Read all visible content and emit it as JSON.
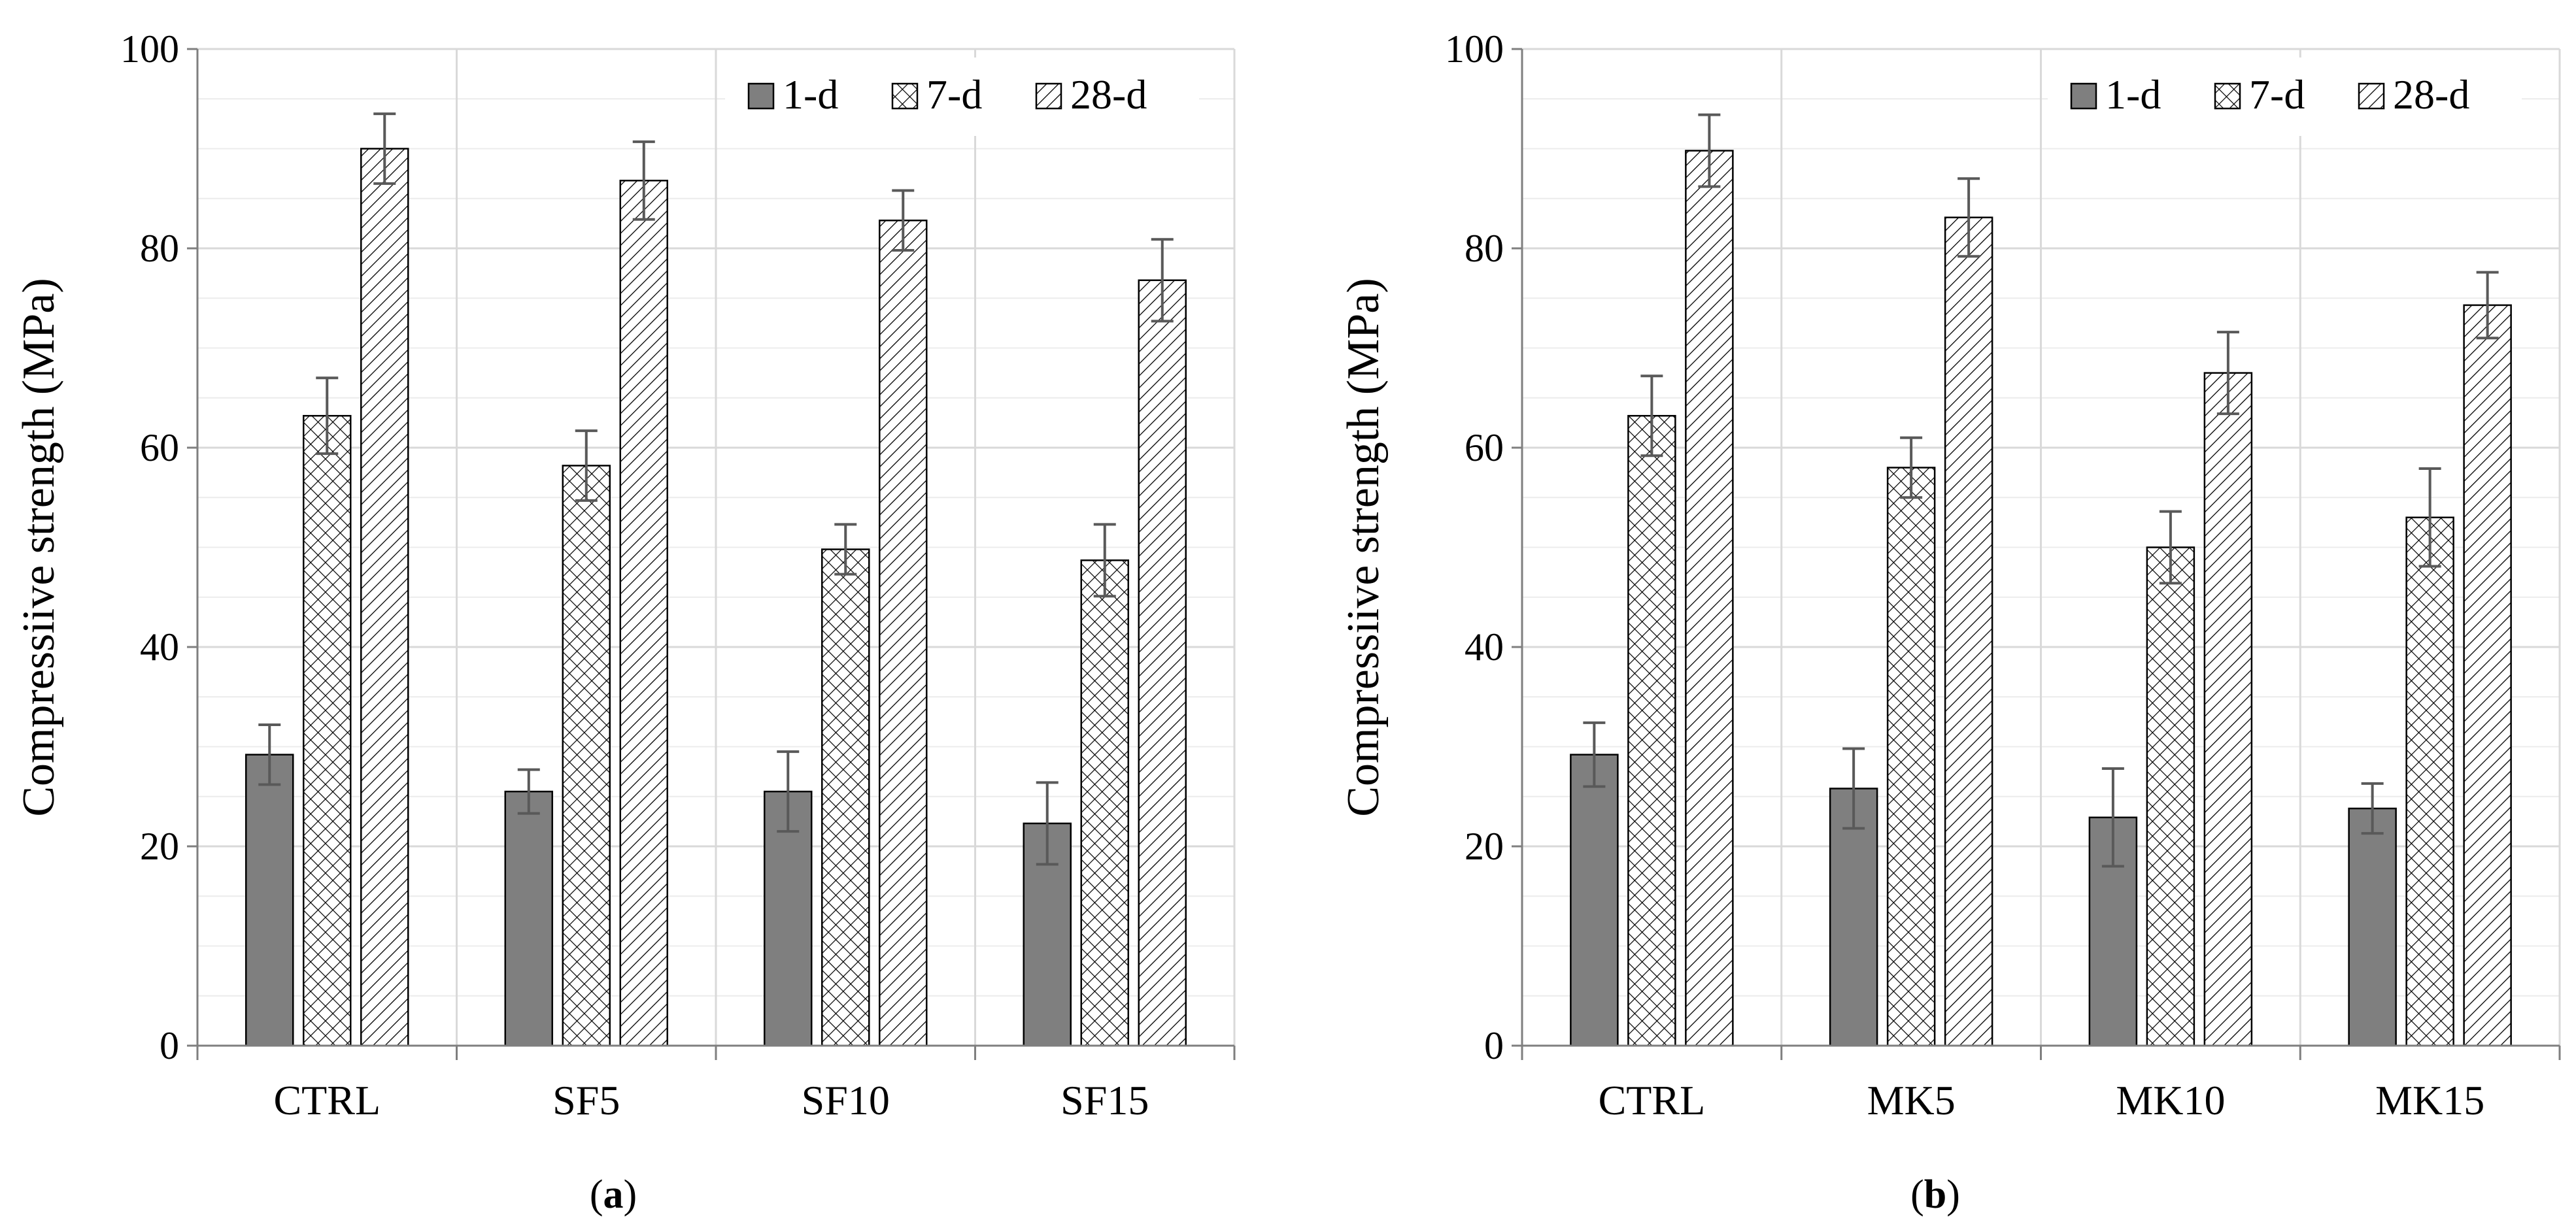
{
  "legend_labels": {
    "d1": "1-d",
    "d7": "7-d",
    "d28": "28-d"
  },
  "colors": {
    "d1": "#7f7f7f",
    "axis": "#7f7f7f",
    "grid": "#d9d9d9",
    "bar_stroke": "#000000"
  },
  "chart_data": [
    {
      "type": "bar",
      "panel_label": "a",
      "xlabel": "",
      "ylabel": "Compressiive strength (MPa)",
      "ylim": [
        0,
        100
      ],
      "yticks": [
        0,
        20,
        40,
        60,
        80,
        100
      ],
      "grid": true,
      "legend_position": "top-right",
      "categories": [
        "CTRL",
        "SF5",
        "SF10",
        "SF15"
      ],
      "series": [
        {
          "name": "1-d",
          "values": [
            29.2,
            25.5,
            25.5,
            22.3
          ],
          "errors": [
            3.0,
            2.2,
            4.0,
            4.1
          ],
          "pattern": "solid"
        },
        {
          "name": "7-d",
          "values": [
            63.2,
            58.2,
            49.8,
            48.7
          ],
          "errors": [
            3.8,
            3.5,
            2.5,
            3.6
          ],
          "pattern": "crosshatch"
        },
        {
          "name": "28-d",
          "values": [
            90.0,
            86.8,
            82.8,
            76.8
          ],
          "errors": [
            3.5,
            3.9,
            3.0,
            4.1
          ],
          "pattern": "diagonal"
        }
      ]
    },
    {
      "type": "bar",
      "panel_label": "b",
      "xlabel": "",
      "ylabel": "Compressiive strength (MPa)",
      "ylim": [
        0,
        100
      ],
      "yticks": [
        0,
        20,
        40,
        60,
        80,
        100
      ],
      "grid": true,
      "legend_position": "top-right",
      "categories": [
        "CTRL",
        "MK5",
        "MK10",
        "MK15"
      ],
      "series": [
        {
          "name": "1-d",
          "values": [
            29.2,
            25.8,
            22.9,
            23.8
          ],
          "errors": [
            3.2,
            4.0,
            4.9,
            2.5
          ],
          "pattern": "solid"
        },
        {
          "name": "7-d",
          "values": [
            63.2,
            58.0,
            50.0,
            53.0
          ],
          "errors": [
            4.0,
            3.0,
            3.6,
            4.9
          ],
          "pattern": "crosshatch"
        },
        {
          "name": "28-d",
          "values": [
            89.8,
            83.1,
            67.5,
            74.3
          ],
          "errors": [
            3.6,
            3.9,
            4.1,
            3.3
          ],
          "pattern": "diagonal"
        }
      ]
    }
  ]
}
